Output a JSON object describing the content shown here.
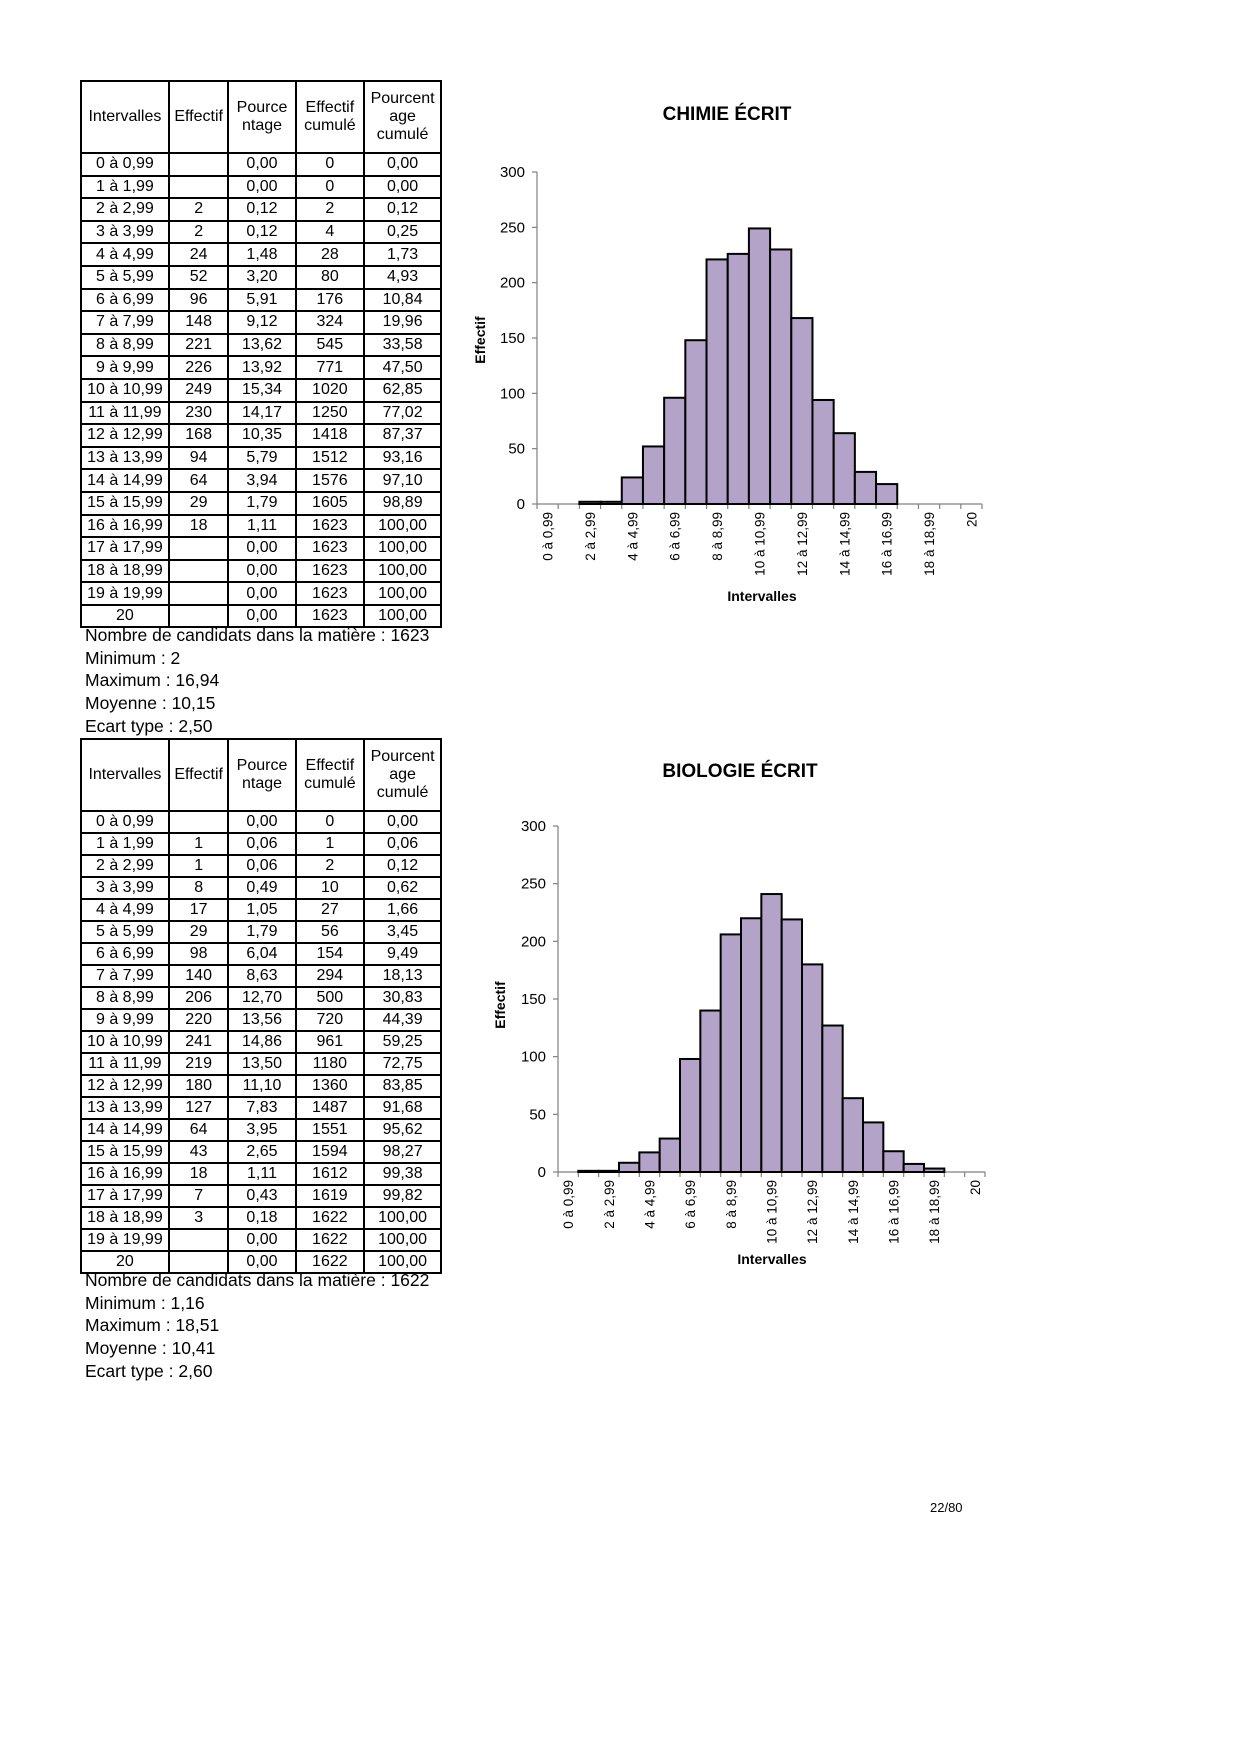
{
  "headers": [
    "Intervalles",
    "Effectif",
    "Pource ntage",
    "Effectif cumulé",
    "Pourcent age cumulé"
  ],
  "sections": [
    {
      "title": "CHIMIE ÉCRIT",
      "rows": [
        [
          "0 à 0,99",
          "",
          "0,00",
          "0",
          "0,00"
        ],
        [
          "1 à 1,99",
          "",
          "0,00",
          "0",
          "0,00"
        ],
        [
          "2 à 2,99",
          "2",
          "0,12",
          "2",
          "0,12"
        ],
        [
          "3 à 3,99",
          "2",
          "0,12",
          "4",
          "0,25"
        ],
        [
          "4 à 4,99",
          "24",
          "1,48",
          "28",
          "1,73"
        ],
        [
          "5 à 5,99",
          "52",
          "3,20",
          "80",
          "4,93"
        ],
        [
          "6 à 6,99",
          "96",
          "5,91",
          "176",
          "10,84"
        ],
        [
          "7 à 7,99",
          "148",
          "9,12",
          "324",
          "19,96"
        ],
        [
          "8 à 8,99",
          "221",
          "13,62",
          "545",
          "33,58"
        ],
        [
          "9 à 9,99",
          "226",
          "13,92",
          "771",
          "47,50"
        ],
        [
          "10 à 10,99",
          "249",
          "15,34",
          "1020",
          "62,85"
        ],
        [
          "11 à 11,99",
          "230",
          "14,17",
          "1250",
          "77,02"
        ],
        [
          "12 à 12,99",
          "168",
          "10,35",
          "1418",
          "87,37"
        ],
        [
          "13 à 13,99",
          "94",
          "5,79",
          "1512",
          "93,16"
        ],
        [
          "14 à 14,99",
          "64",
          "3,94",
          "1576",
          "97,10"
        ],
        [
          "15 à 15,99",
          "29",
          "1,79",
          "1605",
          "98,89"
        ],
        [
          "16 à 16,99",
          "18",
          "1,11",
          "1623",
          "100,00"
        ],
        [
          "17 à 17,99",
          "",
          "0,00",
          "1623",
          "100,00"
        ],
        [
          "18 à 18,99",
          "",
          "0,00",
          "1623",
          "100,00"
        ],
        [
          "19 à 19,99",
          "",
          "0,00",
          "1623",
          "100,00"
        ],
        [
          "20",
          "",
          "0,00",
          "1623",
          "100,00"
        ]
      ],
      "stats": [
        "Nombre de candidats dans la matière : 1623",
        "Minimum : 2",
        "Maximum : 16,94",
        "Moyenne : 10,15",
        "Ecart type : 2,50"
      ]
    },
    {
      "title": "BIOLOGIE ÉCRIT",
      "rows": [
        [
          "0 à 0,99",
          "",
          "0,00",
          "0",
          "0,00"
        ],
        [
          "1 à 1,99",
          "1",
          "0,06",
          "1",
          "0,06"
        ],
        [
          "2 à 2,99",
          "1",
          "0,06",
          "2",
          "0,12"
        ],
        [
          "3 à 3,99",
          "8",
          "0,49",
          "10",
          "0,62"
        ],
        [
          "4 à 4,99",
          "17",
          "1,05",
          "27",
          "1,66"
        ],
        [
          "5 à 5,99",
          "29",
          "1,79",
          "56",
          "3,45"
        ],
        [
          "6 à 6,99",
          "98",
          "6,04",
          "154",
          "9,49"
        ],
        [
          "7 à 7,99",
          "140",
          "8,63",
          "294",
          "18,13"
        ],
        [
          "8 à 8,99",
          "206",
          "12,70",
          "500",
          "30,83"
        ],
        [
          "9 à 9,99",
          "220",
          "13,56",
          "720",
          "44,39"
        ],
        [
          "10 à 10,99",
          "241",
          "14,86",
          "961",
          "59,25"
        ],
        [
          "11 à 11,99",
          "219",
          "13,50",
          "1180",
          "72,75"
        ],
        [
          "12 à 12,99",
          "180",
          "11,10",
          "1360",
          "83,85"
        ],
        [
          "13 à 13,99",
          "127",
          "7,83",
          "1487",
          "91,68"
        ],
        [
          "14 à 14,99",
          "64",
          "3,95",
          "1551",
          "95,62"
        ],
        [
          "15 à 15,99",
          "43",
          "2,65",
          "1594",
          "98,27"
        ],
        [
          "16 à 16,99",
          "18",
          "1,11",
          "1612",
          "99,38"
        ],
        [
          "17 à 17,99",
          "7",
          "0,43",
          "1619",
          "99,82"
        ],
        [
          "18 à 18,99",
          "3",
          "0,18",
          "1622",
          "100,00"
        ],
        [
          "19 à 19,99",
          "",
          "0,00",
          "1622",
          "100,00"
        ],
        [
          "20",
          "",
          "0,00",
          "1622",
          "100,00"
        ]
      ],
      "stats": [
        "Nombre de candidats dans la matière : 1622",
        "Minimum : 1,16",
        "Maximum : 18,51",
        "Moyenne : 10,41",
        "Ecart type : 2,60"
      ]
    }
  ],
  "chart_data": [
    {
      "type": "bar",
      "title": "CHIMIE ÉCRIT",
      "xlabel": "Intervalles",
      "ylabel": "Effectif",
      "ylim": [
        0,
        300
      ],
      "yticks": [
        0,
        50,
        100,
        150,
        200,
        250,
        300
      ],
      "categories": [
        "0 à 0,99",
        "1 à 1,99",
        "2 à 2,99",
        "3 à 3,99",
        "4 à 4,99",
        "5 à 5,99",
        "6 à 6,99",
        "7 à 7,99",
        "8 à 8,99",
        "9 à 9,99",
        "10 à 10,99",
        "11 à 11,99",
        "12 à 12,99",
        "13 à 13,99",
        "14 à 14,99",
        "15 à 15,99",
        "16 à 16,99",
        "17 à 17,99",
        "18 à 18,99",
        "19 à 19,99",
        "20"
      ],
      "shown_tick_labels": [
        "0 à 0,99",
        "2 à 2,99",
        "4 à 4,99",
        "6 à 6,99",
        "8 à 8,99",
        "10 à 10,99",
        "12 à 12,99",
        "14 à 14,99",
        "16 à 16,99",
        "18 à 18,99",
        "20"
      ],
      "values": [
        0,
        0,
        2,
        2,
        24,
        52,
        96,
        148,
        221,
        226,
        249,
        230,
        168,
        94,
        64,
        29,
        18,
        0,
        0,
        0,
        0
      ],
      "color": "#b3a3c9",
      "grid": false
    },
    {
      "type": "bar",
      "title": "BIOLOGIE ÉCRIT",
      "xlabel": "Intervalles",
      "ylabel": "Effectif",
      "ylim": [
        0,
        300
      ],
      "yticks": [
        0,
        50,
        100,
        150,
        200,
        250,
        300
      ],
      "categories": [
        "0 à 0,99",
        "1 à 1,99",
        "2 à 2,99",
        "3 à 3,99",
        "4 à 4,99",
        "5 à 5,99",
        "6 à 6,99",
        "7 à 7,99",
        "8 à 8,99",
        "9 à 9,99",
        "10 à 10,99",
        "11 à 11,99",
        "12 à 12,99",
        "13 à 13,99",
        "14 à 14,99",
        "15 à 15,99",
        "16 à 16,99",
        "17 à 17,99",
        "18 à 18,99",
        "19 à 19,99",
        "20"
      ],
      "shown_tick_labels": [
        "0 à 0,99",
        "2 à 2,99",
        "4 à 4,99",
        "6 à 6,99",
        "8 à 8,99",
        "10 à 10,99",
        "12 à 12,99",
        "14 à 14,99",
        "16 à 16,99",
        "18 à 18,99",
        "20"
      ],
      "values": [
        0,
        1,
        1,
        8,
        17,
        29,
        98,
        140,
        206,
        220,
        241,
        219,
        180,
        127,
        64,
        43,
        18,
        7,
        3,
        0,
        0
      ],
      "color": "#b3a3c9",
      "grid": false
    }
  ],
  "page_number": "22/80"
}
